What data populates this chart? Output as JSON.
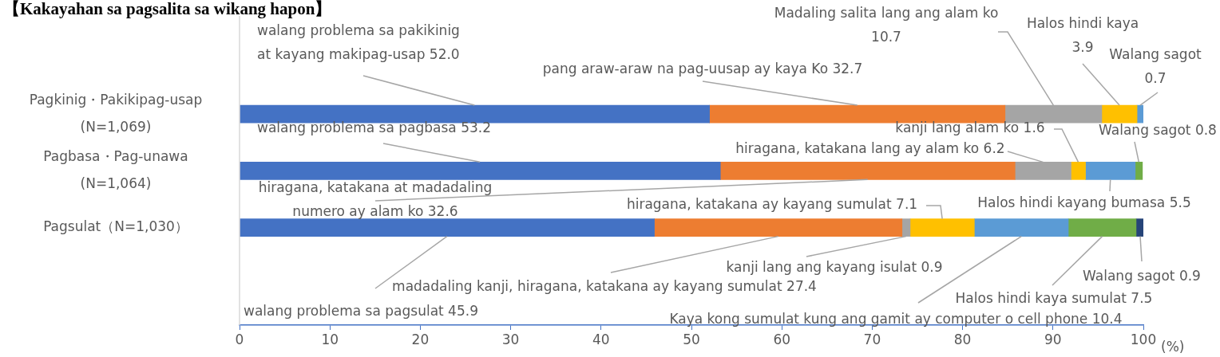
{
  "chart_data": {
    "type": "bar",
    "orientation": "horizontal",
    "stacked": true,
    "title": "【Kakayahan sa pagsalita sa wikang hapon】",
    "xlabel": "(%)",
    "categories": [
      "Pagkinig・Pakikipag-usap (N=1,069)",
      "Pagbasa・Pag-unawa (N=1,064)",
      "Pagsulat（N=1,030）"
    ],
    "xlim": [
      0,
      100
    ],
    "xticks": [
      0,
      10,
      20,
      30,
      40,
      50,
      60,
      70,
      80,
      90,
      100
    ],
    "grid": false,
    "legend": false,
    "series": [
      {
        "color": "#4472c4",
        "values": [
          52.0,
          53.2,
          45.9
        ],
        "value_labels": [
          "walang problema sa pakikinig at kayang makipag-usap 52.0",
          "walang problema sa pagbasa 53.2",
          "walang problema sa pagsulat 45.9"
        ]
      },
      {
        "color": "#ed7d31",
        "values": [
          32.7,
          32.6,
          27.4
        ],
        "value_labels": [
          "pang araw-araw na pag-uusap ay kaya Ko 32.7",
          "hiragana, katakana at madadaling numero ay alam ko 32.6",
          "madadaling kanji, hiragana, katakana ay kayang sumulat 27.4"
        ]
      },
      {
        "color": "#a5a5a5",
        "values": [
          10.7,
          6.2,
          0.9
        ],
        "value_labels": [
          "Madaling salita lang ang alam ko 10.7",
          "hiragana, katakana lang ay alam ko 6.2",
          "kanji lang ang kayang isulat 0.9"
        ]
      },
      {
        "color": "#ffc000",
        "values": [
          3.9,
          1.6,
          7.1
        ],
        "value_labels": [
          "Halos hindi kaya 3.9",
          "kanji lang alam ko 1.6",
          "hiragana, katakana ay kayang sumulat 7.1"
        ]
      },
      {
        "color": "#5b9bd5",
        "values": [
          0.7,
          5.5,
          10.4
        ],
        "value_labels": [
          "Walang sagot 0.7",
          "Halos hindi kayang bumasa 5.5",
          "Kaya kong sumulat kung ang gamit ay computer o cell phone 10.4"
        ]
      },
      {
        "color": "#70ad47",
        "values": [
          null,
          0.8,
          7.5
        ],
        "value_labels": [
          null,
          "Walang sagot 0.8",
          "Halos hindi kaya sumulat 7.5"
        ]
      },
      {
        "color": "#264478",
        "values": [
          null,
          null,
          0.9
        ],
        "value_labels": [
          null,
          null,
          "Walang sagot 0.9"
        ]
      }
    ]
  }
}
